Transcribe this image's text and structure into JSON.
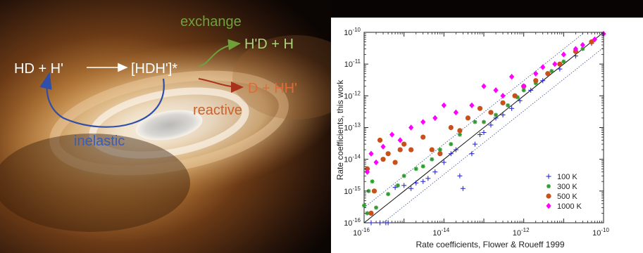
{
  "scheme": {
    "reactants": "HD + H'",
    "complex": "[HDH']*",
    "exchange_label": "exchange",
    "exchange_products": "H'D + H",
    "reactive_label": "reactive",
    "reactive_products": "D + HH'",
    "inelastic_label": "inelastic"
  },
  "colors": {
    "exchange": "#6fa03c",
    "reactive": "#c0562a",
    "inelastic": "#2f4fa8",
    "series_100K": "#2b2bd0",
    "series_300K": "#2f9a2f",
    "series_500K": "#c8501a",
    "series_1000K": "#ff00ff"
  },
  "chart_data": {
    "type": "scatter",
    "xlabel": "Rate coefficients, Flower & Roueff 1999",
    "ylabel": "Rate coefficients, this work",
    "x_scale": "log",
    "y_scale": "log",
    "xlim": [
      1e-16,
      1e-10
    ],
    "ylim": [
      1e-16,
      1e-10
    ],
    "x_ticks": [
      "10^-16",
      "10^-14",
      "10^-12",
      "10^-10"
    ],
    "y_ticks": [
      "10^-16",
      "10^-15",
      "10^-14",
      "10^-13",
      "10^-12",
      "10^-11",
      "10^-10"
    ],
    "grid": false,
    "legend_position": "bottom-right",
    "reference_lines": [
      "y = x",
      "y = 3x (dotted)",
      "y = x/3 (dotted)"
    ],
    "series": [
      {
        "name": "100 K",
        "marker": "plus",
        "color": "#2b2bd0",
        "x": [
          1.5e-16,
          2.5e-16,
          3.5e-16,
          4e-16,
          6e-16,
          1e-15,
          1.5e-15,
          2e-15,
          3e-15,
          4e-15,
          6e-15,
          1e-14,
          1.5e-14,
          2e-14,
          2.5e-14,
          3e-14,
          5e-14,
          6e-14,
          8e-14,
          1e-13,
          1.5e-13,
          2e-13,
          3e-13,
          5e-13,
          8e-13,
          1.5e-12,
          3e-12,
          8e-12,
          2e-11,
          5e-11
        ],
        "y": [
          1e-16,
          1e-16,
          1e-16,
          1e-16,
          1.3e-15,
          1.5e-15,
          1.2e-15,
          1.8e-15,
          2e-15,
          2.5e-15,
          4e-15,
          8e-15,
          1.5e-14,
          2e-14,
          3e-15,
          1.2e-15,
          1.5e-14,
          3e-14,
          6e-14,
          7e-14,
          1.2e-13,
          2e-13,
          2.5e-13,
          4e-13,
          7e-13,
          1.5e-12,
          3e-12,
          7e-12,
          1.8e-11,
          4.5e-11
        ]
      },
      {
        "name": "300 K",
        "marker": "asterisk",
        "color": "#2f9a2f",
        "x": [
          1e-16,
          1.2e-16,
          1.3e-16,
          1.6e-16,
          2e-16,
          4e-16,
          7e-16,
          1e-15,
          2e-15,
          3e-15,
          5e-15,
          8e-15,
          1.5e-14,
          2.5e-14,
          4e-14,
          6e-14,
          1e-13,
          2e-13,
          4e-13,
          7e-13,
          1e-12,
          2e-12,
          5e-12,
          1e-11,
          3e-11
        ],
        "y": [
          3.5e-16,
          2e-16,
          1e-15,
          2e-15,
          3e-16,
          8e-16,
          1.5e-15,
          3e-15,
          5e-15,
          6e-15,
          1e-14,
          2e-14,
          3e-14,
          6e-14,
          2e-13,
          1.5e-13,
          1.5e-13,
          2.5e-13,
          5e-13,
          9e-13,
          1.5e-12,
          2.5e-12,
          6e-12,
          1.2e-11,
          3e-11
        ]
      },
      {
        "name": "500 K",
        "marker": "circle",
        "color": "#c8501a",
        "x": [
          1.2e-16,
          1.5e-16,
          1.8e-16,
          2.5e-16,
          3e-16,
          4e-16,
          6e-16,
          8e-16,
          1e-15,
          1.5e-15,
          3e-15,
          5e-15,
          8e-15,
          1.5e-14,
          2.5e-14,
          4e-14,
          8e-14,
          1.5e-13,
          3e-13,
          6e-13,
          1e-12,
          2e-12,
          4e-12,
          8e-12,
          2e-11,
          5e-11
        ],
        "y": [
          5e-15,
          2e-16,
          1e-15,
          4e-14,
          1e-14,
          1.5e-14,
          8e-15,
          2e-14,
          3e-14,
          2e-14,
          5e-14,
          2e-14,
          1.5e-14,
          1e-13,
          8e-14,
          2e-13,
          4e-13,
          3e-13,
          6e-13,
          1e-12,
          2e-12,
          3e-12,
          5e-12,
          1e-11,
          2.5e-11,
          5e-11
        ]
      },
      {
        "name": "1000 K",
        "marker": "diamond",
        "color": "#ff00ff",
        "x": [
          1.2e-16,
          1.5e-16,
          2e-16,
          3e-16,
          5e-16,
          8e-16,
          1.5e-15,
          3e-15,
          6e-15,
          1e-14,
          2e-14,
          5e-14,
          1e-13,
          2e-13,
          3e-13,
          5e-13,
          1e-12,
          2e-12,
          3e-12,
          6e-12,
          1e-11,
          2e-11,
          3e-11,
          6e-11,
          1e-10
        ],
        "y": [
          4e-15,
          1.5e-14,
          8e-15,
          2.5e-14,
          6e-14,
          4e-14,
          1e-13,
          1.5e-13,
          2e-13,
          5e-13,
          3e-13,
          5e-13,
          2e-12,
          1.5e-12,
          1e-12,
          4e-12,
          2e-12,
          5e-12,
          8e-12,
          1e-11,
          2e-11,
          3e-11,
          4e-11,
          6e-11,
          9e-11
        ]
      }
    ]
  }
}
